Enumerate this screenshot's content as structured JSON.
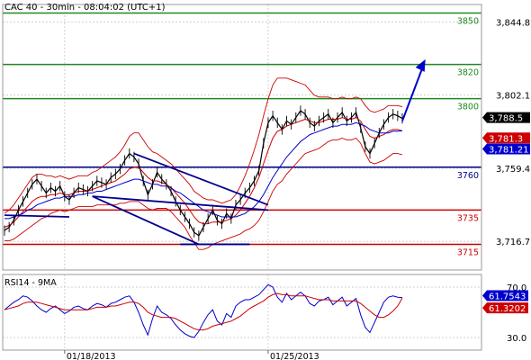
{
  "chart_data": {
    "type": "line",
    "title": "CAC 40 - 30min - 08:04:02 (UTC+1)",
    "main": {
      "ylim": [
        3700,
        3855
      ],
      "yticks": [
        {
          "value": 3844.8,
          "label": "3,844.8"
        },
        {
          "value": 3802.1,
          "label": "3,802.1"
        },
        {
          "value": 3759.4,
          "label": "3,759.4"
        },
        {
          "value": 3716.7,
          "label": "3,716.7"
        }
      ],
      "levels": [
        {
          "value": 3850,
          "label": "3850",
          "color": "#1f8a1f"
        },
        {
          "value": 3820,
          "label": "3820",
          "color": "#1f8a1f"
        },
        {
          "value": 3800,
          "label": "3800",
          "color": "#1f8a1f"
        },
        {
          "value": 3760,
          "label": "3760",
          "color": "#00008b"
        },
        {
          "value": 3735,
          "label": "3735",
          "color": "#cc0000"
        },
        {
          "value": 3715,
          "label": "3715",
          "color": "#cc0000"
        }
      ],
      "price_tags": [
        {
          "value": 3788.5,
          "label": "3,788.5",
          "bg": "#000000",
          "fg": "#ffffff"
        },
        {
          "value": 3781.3,
          "label": "3,781.3",
          "bg": "#cc0000",
          "fg": "#ffffff"
        },
        {
          "value": 3781.21,
          "label": "3,781.21",
          "bg": "#0000cc",
          "fg": "#ffffff"
        }
      ],
      "series": [
        {
          "name": "price",
          "color": "#000000",
          "values": [
            3723,
            3725,
            3729,
            3735,
            3740,
            3745,
            3750,
            3753,
            3749,
            3745,
            3748,
            3746,
            3749,
            3743,
            3741,
            3745,
            3748,
            3747,
            3746,
            3749,
            3752,
            3751,
            3750,
            3754,
            3756,
            3759,
            3764,
            3768,
            3766,
            3762,
            3752,
            3744,
            3750,
            3757,
            3753,
            3750,
            3746,
            3740,
            3735,
            3731,
            3727,
            3722,
            3720,
            3725,
            3730,
            3735,
            3729,
            3727,
            3733,
            3730,
            3738,
            3741,
            3745,
            3748,
            3752,
            3758,
            3774,
            3786,
            3790,
            3786,
            3782,
            3787,
            3785,
            3789,
            3793,
            3791,
            3786,
            3784,
            3787,
            3789,
            3791,
            3786,
            3789,
            3792,
            3787,
            3789,
            3792,
            3783,
            3772,
            3768,
            3774,
            3780,
            3785,
            3789,
            3791,
            3790,
            3788.5
          ]
        },
        {
          "name": "ma-red",
          "color": "#cc0000",
          "values": [
            3725,
            3726,
            3728,
            3731,
            3734,
            3737,
            3740,
            3742,
            3743,
            3743,
            3744,
            3744,
            3745,
            3744,
            3744,
            3745,
            3746,
            3746,
            3746,
            3747,
            3748,
            3749,
            3750,
            3751,
            3752,
            3754,
            3756,
            3759,
            3760,
            3760,
            3757,
            3754,
            3752,
            3752,
            3751,
            3750,
            3748,
            3745,
            3742,
            3739,
            3735,
            3731,
            3728,
            3727,
            3727,
            3728,
            3728,
            3728,
            3729,
            3730,
            3732,
            3735,
            3739,
            3743,
            3748,
            3754,
            3762,
            3770,
            3777,
            3781,
            3782,
            3784,
            3785,
            3786,
            3787,
            3788,
            3787,
            3786,
            3786,
            3787,
            3788,
            3788,
            3788,
            3789,
            3788,
            3788,
            3789,
            3787,
            3782,
            3778,
            3777,
            3778,
            3779,
            3781,
            3782,
            3782,
            3781.3
          ]
        },
        {
          "name": "ma-blue",
          "color": "#0000cc",
          "values": [
            3730,
            3730,
            3731,
            3732,
            3733,
            3735,
            3736,
            3738,
            3739,
            3740,
            3741,
            3742,
            3742,
            3743,
            3743,
            3743,
            3744,
            3744,
            3745,
            3745,
            3746,
            3746,
            3747,
            3748,
            3749,
            3750,
            3751,
            3752,
            3753,
            3753,
            3752,
            3751,
            3750,
            3750,
            3749,
            3749,
            3748,
            3746,
            3745,
            3743,
            3741,
            3739,
            3737,
            3735,
            3734,
            3733,
            3732,
            3731,
            3731,
            3731,
            3731,
            3732,
            3733,
            3735,
            3737,
            3740,
            3744,
            3749,
            3754,
            3758,
            3762,
            3766,
            3769,
            3772,
            3775,
            3777,
            3779,
            3780,
            3781,
            3782,
            3783,
            3784,
            3784,
            3785,
            3785,
            3785,
            3786,
            3785,
            3784,
            3782,
            3781,
            3780,
            3780,
            3780,
            3781,
            3781,
            3781.21
          ]
        }
      ],
      "band_width": [
        8,
        9,
        10,
        11,
        12,
        13,
        14,
        14,
        13,
        12,
        11,
        10,
        10,
        10,
        9,
        9,
        9,
        9,
        9,
        10,
        10,
        11,
        12,
        13,
        14,
        15,
        17,
        19,
        20,
        20,
        19,
        18,
        17,
        16,
        15,
        14,
        14,
        14,
        14,
        14,
        15,
        15,
        16,
        15,
        14,
        13,
        12,
        11,
        11,
        11,
        12,
        14,
        16,
        19,
        22,
        25,
        28,
        30,
        31,
        31,
        30,
        28,
        26,
        24,
        22,
        20,
        18,
        16,
        15,
        14,
        13,
        12,
        12,
        12,
        12,
        12,
        12,
        13,
        14,
        15,
        15,
        15,
        15,
        15,
        14,
        14,
        14
      ]
    },
    "rsi": {
      "title": "RSI14 - 9MA",
      "ylim": [
        20,
        80
      ],
      "yticks": [
        {
          "value": 70,
          "label": "70.0"
        },
        {
          "value": 30,
          "label": "30.0"
        }
      ],
      "price_tags": [
        {
          "value": 61.7543,
          "label": "61.7543",
          "bg": "#0000cc",
          "fg": "#ffffff"
        },
        {
          "value": 61.3202,
          "label": "61.3202",
          "bg": "#cc0000",
          "fg": "#ffffff"
        }
      ],
      "series": [
        {
          "name": "rsi",
          "color": "#0000cc",
          "values": [
            52,
            55,
            58,
            60,
            63,
            62,
            59,
            55,
            52,
            50,
            53,
            55,
            52,
            49,
            51,
            54,
            55,
            53,
            52,
            55,
            57,
            56,
            54,
            57,
            58,
            60,
            62,
            63,
            58,
            50,
            40,
            32,
            45,
            55,
            50,
            48,
            45,
            40,
            36,
            33,
            31,
            30,
            35,
            42,
            48,
            52,
            43,
            40,
            49,
            46,
            55,
            58,
            60,
            60,
            62,
            64,
            68,
            72,
            70,
            62,
            58,
            65,
            60,
            63,
            66,
            63,
            57,
            55,
            59,
            60,
            62,
            56,
            59,
            62,
            55,
            58,
            61,
            48,
            38,
            34,
            42,
            50,
            58,
            62,
            63,
            62,
            61.75
          ]
        },
        {
          "name": "rsi-ma",
          "color": "#cc0000",
          "values": [
            52,
            53,
            54,
            55,
            57,
            58,
            58,
            58,
            57,
            56,
            55,
            54,
            53,
            52,
            52,
            52,
            52,
            52,
            52,
            53,
            54,
            54,
            54,
            55,
            55,
            56,
            57,
            58,
            58,
            57,
            54,
            50,
            48,
            47,
            46,
            46,
            46,
            45,
            43,
            41,
            39,
            37,
            36,
            36,
            37,
            39,
            40,
            41,
            42,
            43,
            45,
            47,
            50,
            53,
            55,
            57,
            59,
            62,
            64,
            65,
            64,
            64,
            63,
            63,
            63,
            63,
            62,
            61,
            60,
            60,
            60,
            59,
            59,
            59,
            59,
            59,
            59,
            57,
            54,
            51,
            48,
            46,
            46,
            48,
            51,
            55,
            61.32
          ]
        }
      ]
    },
    "x_dates": [
      {
        "index": 13,
        "label": "01/18/2013"
      },
      {
        "index": 57,
        "label": "01/25/2013"
      }
    ],
    "annotations": {
      "arrow": {
        "from": [
          86,
          3787
        ],
        "to": [
          91,
          3823
        ]
      },
      "trendlines": [
        {
          "from": [
            0,
            3732
          ],
          "to": [
            14,
            3731
          ],
          "color": "#00008b"
        },
        {
          "from": [
            28,
            3768
          ],
          "to": [
            57,
            3738
          ],
          "color": "#00008b"
        },
        {
          "from": [
            19,
            3743
          ],
          "to": [
            57,
            3735
          ],
          "color": "#00008b"
        },
        {
          "from": [
            19,
            3743
          ],
          "to": [
            42,
            3715
          ],
          "color": "#00008b"
        },
        {
          "from": [
            38,
            3715
          ],
          "to": [
            53,
            3715
          ],
          "color": "#00008b"
        }
      ]
    }
  }
}
